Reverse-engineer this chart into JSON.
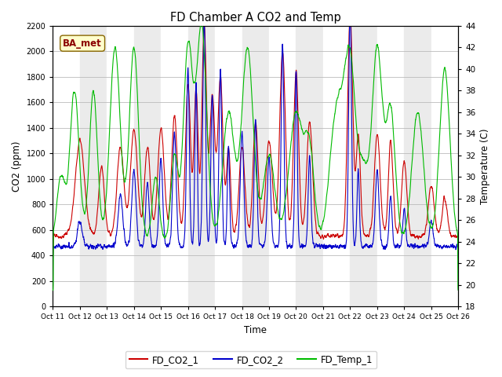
{
  "title": "FD Chamber A CO2 and Temp",
  "xlabel": "Time",
  "ylabel_left": "CO2 (ppm)",
  "ylabel_right": "Temperature (C)",
  "xlim": [
    0,
    15
  ],
  "ylim_left": [
    0,
    2200
  ],
  "ylim_right": [
    18,
    44
  ],
  "xtick_labels": [
    "Oct 11",
    "Oct 12",
    "Oct 13",
    "Oct 14",
    "Oct 15",
    "Oct 16",
    "Oct 17",
    "Oct 18",
    "Oct 19",
    "Oct 20",
    "Oct 21",
    "Oct 22",
    "Oct 23",
    "Oct 24",
    "Oct 25",
    "Oct 26"
  ],
  "xtick_positions": [
    0,
    1,
    2,
    3,
    4,
    5,
    6,
    7,
    8,
    9,
    10,
    11,
    12,
    13,
    14,
    15
  ],
  "color_co2_1": "#cc0000",
  "color_co2_2": "#0000cc",
  "color_temp": "#00bb00",
  "color_band_light": "#ebebeb",
  "color_band_white": "#ffffff",
  "legend_labels": [
    "FD_CO2_1",
    "FD_CO2_2",
    "FD_Temp_1"
  ],
  "annotation_text": "BA_met",
  "yticks_left": [
    0,
    200,
    400,
    600,
    800,
    1000,
    1200,
    1400,
    1600,
    1800,
    2000,
    2200
  ],
  "yticks_right": [
    18,
    20,
    22,
    24,
    26,
    28,
    30,
    32,
    34,
    36,
    38,
    40,
    42,
    44
  ]
}
